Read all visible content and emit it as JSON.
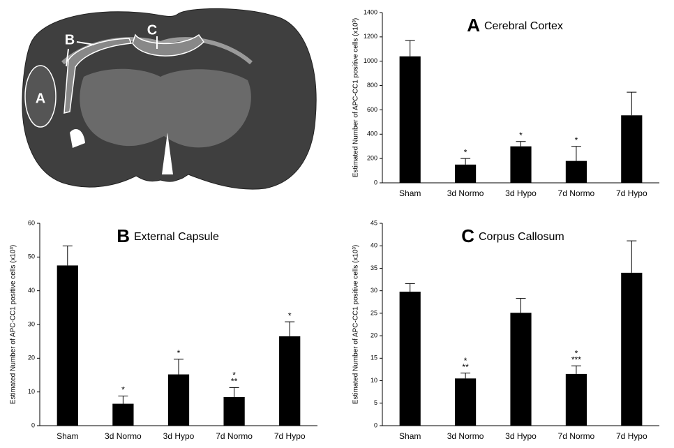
{
  "image_labels": [
    "A",
    "B",
    "C"
  ],
  "chart_data": [
    {
      "type": "bar",
      "panel": "A",
      "title": "Cerebral Cortex",
      "ylabel": "Estimated Number of APC-CC1 positive cells (x10³)",
      "categories": [
        "Sham",
        "3d Normo",
        "3d Hypo",
        "7d Normo",
        "7d Hypo"
      ],
      "values": [
        1040,
        150,
        300,
        180,
        555
      ],
      "errors": [
        130,
        50,
        40,
        120,
        190
      ],
      "annotations": [
        null,
        [
          "*"
        ],
        [
          "*"
        ],
        [
          "*"
        ],
        null
      ],
      "color": "#000000",
      "ylim": [
        0,
        1400
      ],
      "yticks": [
        0,
        200,
        400,
        600,
        800,
        1000,
        1200,
        1400
      ]
    },
    {
      "type": "bar",
      "panel": "B",
      "title": "External Capsule",
      "ylabel": "Estimated Number of APC-CC1 positive cells (x10³)",
      "categories": [
        "Sham",
        "3d Normo",
        "3d Hypo",
        "7d Normo",
        "7d Hypo"
      ],
      "values": [
        47.5,
        6.5,
        15.2,
        8.5,
        26.5
      ],
      "errors": [
        5.8,
        2.3,
        4.5,
        2.8,
        4.3
      ],
      "annotations": [
        null,
        [
          "*"
        ],
        [
          "*"
        ],
        [
          "*",
          "**"
        ],
        [
          "*"
        ]
      ],
      "color": "#000000",
      "ylim": [
        0,
        60
      ],
      "yticks": [
        0,
        10,
        20,
        30,
        40,
        50,
        60
      ]
    },
    {
      "type": "bar",
      "panel": "C",
      "title": "Corpus Callosum",
      "ylabel": "Estimated Number of APC-CC1 positive cells (x10³)",
      "categories": [
        "Sham",
        "3d Normo",
        "3d Hypo",
        "7d Normo",
        "7d Hypo"
      ],
      "values": [
        29.8,
        10.5,
        25.1,
        11.5,
        34.0
      ],
      "errors": [
        1.8,
        1.2,
        3.2,
        1.8,
        7.1
      ],
      "annotations": [
        null,
        [
          "*",
          "**"
        ],
        null,
        [
          "*",
          "***"
        ],
        null
      ],
      "color": "#000000",
      "ylim": [
        0,
        45
      ],
      "yticks": [
        0,
        5,
        10,
        15,
        20,
        25,
        30,
        35,
        40,
        45
      ]
    }
  ]
}
